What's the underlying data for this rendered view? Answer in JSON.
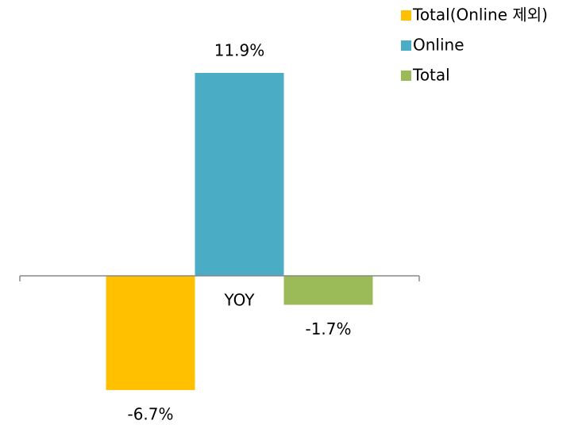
{
  "chart_data": {
    "type": "bar",
    "categories": [
      "YOY"
    ],
    "series": [
      {
        "name": "Total(Online 제외)",
        "color": "#FFC000",
        "values": [
          -6.7
        ],
        "value_labels": [
          "-6.7%"
        ]
      },
      {
        "name": "Online",
        "color": "#4BACC6",
        "values": [
          11.9
        ],
        "value_labels": [
          "11.9%"
        ]
      },
      {
        "name": "Total",
        "color": "#9BBB59",
        "values": [
          -1.7
        ],
        "value_labels": [
          "-1.7%"
        ]
      }
    ],
    "legend": "top-right"
  }
}
